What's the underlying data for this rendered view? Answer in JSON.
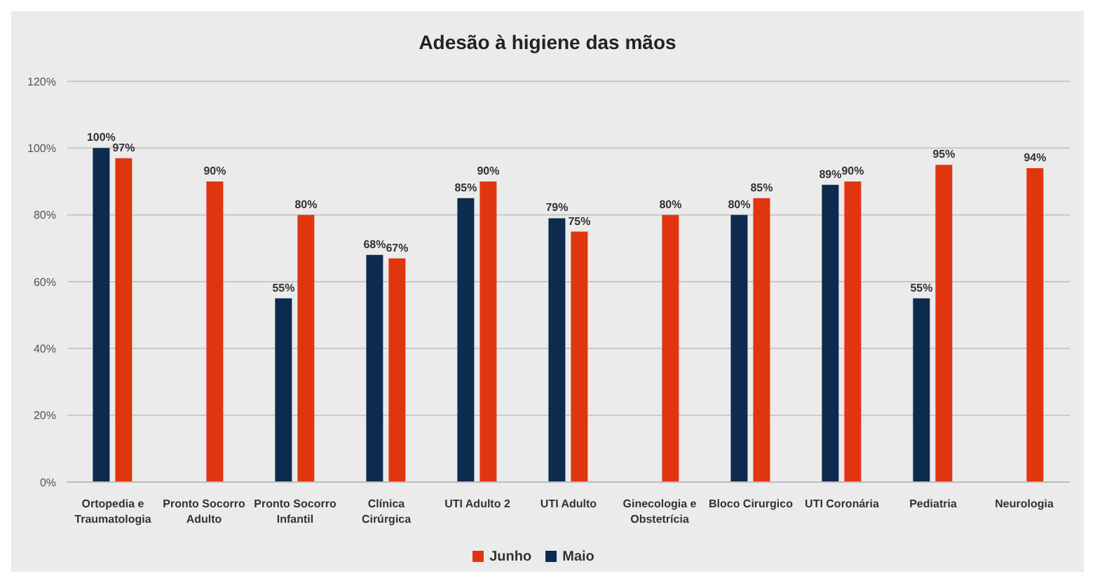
{
  "chart_data": {
    "type": "bar",
    "title": "Adesão à higiene das mãos",
    "categories": [
      "Ortopedia e Traumatologia",
      "Pronto Socorro Adulto",
      "Pronto Socorro Infantil",
      "Clínica Cirúrgica",
      "UTI Adulto 2",
      "UTI Adulto",
      "Ginecologia e Obstetrícia",
      "Bloco Cirurgico",
      "UTI Coronária",
      "Pediatria",
      "Neurologia"
    ],
    "series": [
      {
        "name": "Maio",
        "color": "#0d2a4f",
        "values": [
          100,
          null,
          55,
          68,
          85,
          79,
          null,
          80,
          89,
          55,
          null
        ]
      },
      {
        "name": "Junho",
        "color": "#e0360f",
        "values": [
          97,
          90,
          80,
          67,
          90,
          75,
          80,
          85,
          90,
          95,
          94
        ]
      }
    ],
    "ylim": [
      0,
      120
    ],
    "yticks": [
      {
        "value": 0,
        "label": "0%"
      },
      {
        "value": 20,
        "label": "20%"
      },
      {
        "value": 40,
        "label": "40%"
      },
      {
        "value": 60,
        "label": "60%"
      },
      {
        "value": 80,
        "label": "80%"
      },
      {
        "value": 100,
        "label": "100%"
      },
      {
        "value": 120,
        "label": "120%"
      }
    ],
    "value_labels": [
      [
        "100%",
        null,
        "55%",
        "68%",
        "85%",
        "79%",
        null,
        "80%",
        "89%",
        "55%",
        null
      ],
      [
        "97%",
        "90%",
        "80%",
        "67%",
        "90%",
        "75%",
        "80%",
        "85%",
        "90%",
        "95%",
        "94%"
      ]
    ],
    "grid": "y",
    "legend": "bottom"
  }
}
